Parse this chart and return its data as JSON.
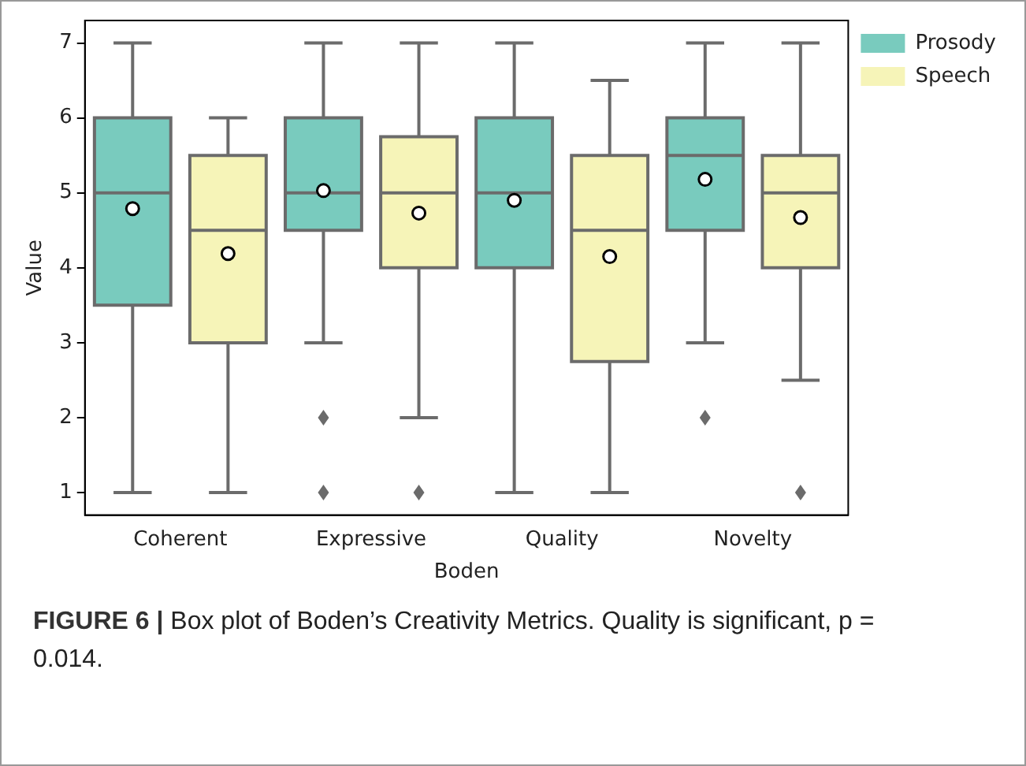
{
  "chart_data": {
    "type": "box",
    "xlabel": "Boden",
    "ylabel": "Value",
    "categories": [
      "Coherent",
      "Expressive",
      "Quality",
      "Novelty"
    ],
    "ylim": [
      0.7,
      7.3
    ],
    "yticks": [
      1,
      2,
      3,
      4,
      5,
      6,
      7
    ],
    "grid": false,
    "legend": "top right",
    "annotations": [
      "FIGURE 6 |",
      "Box plot of Boden’s Creativity Metrics. Quality is significant, p = 0.014."
    ],
    "series": [
      {
        "name": "Prosody",
        "color": "#79cbbe",
        "boxes": [
          {
            "low": 1,
            "q1": 3.5,
            "median": 5,
            "q3": 6,
            "high": 7,
            "mean": 4.79
          },
          {
            "low": 3,
            "q1": 4.5,
            "median": 5,
            "q3": 6,
            "high": 7,
            "mean": 5.03,
            "outliers": [
              2,
              1
            ]
          },
          {
            "low": 1,
            "q1": 4,
            "median": 5,
            "q3": 6,
            "high": 7,
            "mean": 4.9
          },
          {
            "low": 3,
            "q1": 4.5,
            "median": 5.5,
            "q3": 6,
            "high": 7,
            "mean": 5.18,
            "outliers": [
              2
            ]
          }
        ]
      },
      {
        "name": "Speech",
        "color": "#f6f4b8",
        "boxes": [
          {
            "low": 1,
            "q1": 3,
            "median": 4.5,
            "q3": 5.5,
            "high": 6,
            "mean": 4.19
          },
          {
            "low": 2,
            "q1": 4,
            "median": 5,
            "q3": 5.75,
            "high": 7,
            "mean": 4.73,
            "outliers": [
              1
            ]
          },
          {
            "low": 1,
            "q1": 2.75,
            "median": 4.5,
            "q3": 5.5,
            "high": 6.5,
            "mean": 4.15
          },
          {
            "low": 2.5,
            "q1": 4,
            "median": 5,
            "q3": 5.5,
            "high": 7,
            "mean": 4.67,
            "outliers": [
              1
            ]
          }
        ]
      }
    ]
  }
}
